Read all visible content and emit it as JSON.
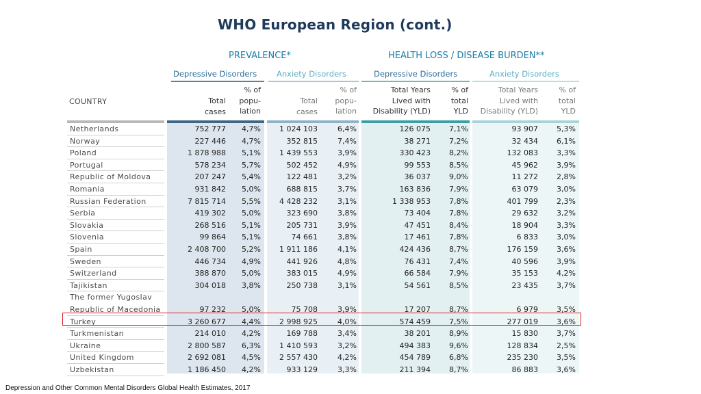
{
  "title": "WHO European Region (cont.)",
  "groups": {
    "prevalence": "PREVALENCE*",
    "burden": "HEALTH LOSS / DISEASE BURDEN**"
  },
  "subgroups": {
    "prev_dep": "Depressive Disorders",
    "prev_anx": "Anxiety Disorders",
    "burd_dep": "Depressive Disorders",
    "burd_anx": "Anxiety Disorders"
  },
  "headers": {
    "country": "COUNTRY",
    "total_cases": [
      "Total",
      "cases"
    ],
    "pct_pop": [
      "% of",
      "popu-",
      "lation"
    ],
    "yld": [
      "Total Years",
      "Lived with",
      "Disability (YLD)"
    ],
    "pct_yld": [
      "% of",
      "total",
      "YLD"
    ]
  },
  "rows": [
    {
      "country": [
        "Netherlands"
      ],
      "dep_cases": "752 777",
      "dep_pct": "4,7%",
      "anx_cases": "1 024 103",
      "anx_pct": "6,4%",
      "dep_yld": "126 075",
      "dep_yld_pct": "7,1%",
      "anx_yld": "93 907",
      "anx_yld_pct": "5,3%"
    },
    {
      "country": [
        "Norway"
      ],
      "dep_cases": "227 446",
      "dep_pct": "4,7%",
      "anx_cases": "352 815",
      "anx_pct": "7,4%",
      "dep_yld": "38 271",
      "dep_yld_pct": "7,2%",
      "anx_yld": "32 434",
      "anx_yld_pct": "6,1%"
    },
    {
      "country": [
        "Poland"
      ],
      "dep_cases": "1 878 988",
      "dep_pct": "5,1%",
      "anx_cases": "1 439 553",
      "anx_pct": "3,9%",
      "dep_yld": "330 423",
      "dep_yld_pct": "8,2%",
      "anx_yld": "132 083",
      "anx_yld_pct": "3,3%"
    },
    {
      "country": [
        "Portugal"
      ],
      "dep_cases": "578 234",
      "dep_pct": "5,7%",
      "anx_cases": "502 452",
      "anx_pct": "4,9%",
      "dep_yld": "99 553",
      "dep_yld_pct": "8,5%",
      "anx_yld": "45 962",
      "anx_yld_pct": "3,9%"
    },
    {
      "country": [
        "Republic of Moldova"
      ],
      "dep_cases": "207 247",
      "dep_pct": "5,4%",
      "anx_cases": "122 481",
      "anx_pct": "3,2%",
      "dep_yld": "36 037",
      "dep_yld_pct": "9,0%",
      "anx_yld": "11 272",
      "anx_yld_pct": "2,8%"
    },
    {
      "country": [
        "Romania"
      ],
      "dep_cases": "931 842",
      "dep_pct": "5,0%",
      "anx_cases": "688 815",
      "anx_pct": "3,7%",
      "dep_yld": "163 836",
      "dep_yld_pct": "7,9%",
      "anx_yld": "63 079",
      "anx_yld_pct": "3,0%"
    },
    {
      "country": [
        "Russian Federation"
      ],
      "dep_cases": "7 815 714",
      "dep_pct": "5,5%",
      "anx_cases": "4 428 232",
      "anx_pct": "3,1%",
      "dep_yld": "1 338 953",
      "dep_yld_pct": "7,8%",
      "anx_yld": "401 799",
      "anx_yld_pct": "2,3%"
    },
    {
      "country": [
        "Serbia"
      ],
      "dep_cases": "419 302",
      "dep_pct": "5,0%",
      "anx_cases": "323 690",
      "anx_pct": "3,8%",
      "dep_yld": "73 404",
      "dep_yld_pct": "7,8%",
      "anx_yld": "29 632",
      "anx_yld_pct": "3,2%"
    },
    {
      "country": [
        "Slovakia"
      ],
      "dep_cases": "268 516",
      "dep_pct": "5,1%",
      "anx_cases": "205 731",
      "anx_pct": "3,9%",
      "dep_yld": "47 451",
      "dep_yld_pct": "8,4%",
      "anx_yld": "18 904",
      "anx_yld_pct": "3,3%"
    },
    {
      "country": [
        "Slovenia"
      ],
      "dep_cases": "99 864",
      "dep_pct": "5,1%",
      "anx_cases": "74 661",
      "anx_pct": "3,8%",
      "dep_yld": "17 461",
      "dep_yld_pct": "7,8%",
      "anx_yld": "6 833",
      "anx_yld_pct": "3,0%"
    },
    {
      "country": [
        "Spain"
      ],
      "dep_cases": "2 408 700",
      "dep_pct": "5,2%",
      "anx_cases": "1 911 186",
      "anx_pct": "4,1%",
      "dep_yld": "424 436",
      "dep_yld_pct": "8,7%",
      "anx_yld": "176 159",
      "anx_yld_pct": "3,6%"
    },
    {
      "country": [
        "Sweden"
      ],
      "dep_cases": "446 734",
      "dep_pct": "4,9%",
      "anx_cases": "441 926",
      "anx_pct": "4,8%",
      "dep_yld": "76 431",
      "dep_yld_pct": "7,4%",
      "anx_yld": "40 596",
      "anx_yld_pct": "3,9%"
    },
    {
      "country": [
        "Switzerland"
      ],
      "dep_cases": "388 870",
      "dep_pct": "5,0%",
      "anx_cases": "383 015",
      "anx_pct": "4,9%",
      "dep_yld": "66 584",
      "dep_yld_pct": "7,9%",
      "anx_yld": "35 153",
      "anx_yld_pct": "4,2%"
    },
    {
      "country": [
        "Tajikistan"
      ],
      "dep_cases": "304 018",
      "dep_pct": "3,8%",
      "anx_cases": "250 738",
      "anx_pct": "3,1%",
      "dep_yld": "54 561",
      "dep_yld_pct": "8,5%",
      "anx_yld": "23 435",
      "anx_yld_pct": "3,7%"
    },
    {
      "country": [
        "The former Yugoslav",
        "Republic of Macedonia"
      ],
      "dep_cases": "97 232",
      "dep_pct": "5,0%",
      "anx_cases": "75 708",
      "anx_pct": "3,9%",
      "dep_yld": "17 207",
      "dep_yld_pct": "8,7%",
      "anx_yld": "6 979",
      "anx_yld_pct": "3,5%"
    },
    {
      "country": [
        "Turkey"
      ],
      "dep_cases": "3 260 677",
      "dep_pct": "4,4%",
      "anx_cases": "2 998 925",
      "anx_pct": "4,0%",
      "dep_yld": "574 459",
      "dep_yld_pct": "7,5%",
      "anx_yld": "277 019",
      "anx_yld_pct": "3,6%",
      "highlighted": true
    },
    {
      "country": [
        "Turkmenistan"
      ],
      "dep_cases": "214 010",
      "dep_pct": "4,2%",
      "anx_cases": "169 788",
      "anx_pct": "3,4%",
      "dep_yld": "38 201",
      "dep_yld_pct": "8,9%",
      "anx_yld": "15 830",
      "anx_yld_pct": "3,7%"
    },
    {
      "country": [
        "Ukraine"
      ],
      "dep_cases": "2 800 587",
      "dep_pct": "6,3%",
      "anx_cases": "1 410 593",
      "anx_pct": "3,2%",
      "dep_yld": "494 383",
      "dep_yld_pct": "9,6%",
      "anx_yld": "128 834",
      "anx_yld_pct": "2,5%"
    },
    {
      "country": [
        "United Kingdom"
      ],
      "dep_cases": "2 692 081",
      "dep_pct": "4,5%",
      "anx_cases": "2 557 430",
      "anx_pct": "4,2%",
      "dep_yld": "454 789",
      "dep_yld_pct": "6,8%",
      "anx_yld": "235 230",
      "anx_yld_pct": "3,5%"
    },
    {
      "country": [
        "Uzbekistan"
      ],
      "dep_cases": "1 186 450",
      "dep_pct": "4,2%",
      "anx_cases": "933 129",
      "anx_pct": "3,3%",
      "dep_yld": "211 394",
      "dep_yld_pct": "8,7%",
      "anx_yld": "86 883",
      "anx_yld_pct": "3,6%"
    }
  ],
  "footer": "Depression and Other Common Mental Disorders Global Health Estimates, 2017",
  "colors": {
    "title": "#1f3a5a",
    "highlight_border": "#d62020",
    "band_dep_prev": "#dde6ee",
    "band_anx_prev": "#e9f0f5",
    "band_dep_burd": "#e2f0f1",
    "band_anx_burd": "#edf6f6"
  }
}
